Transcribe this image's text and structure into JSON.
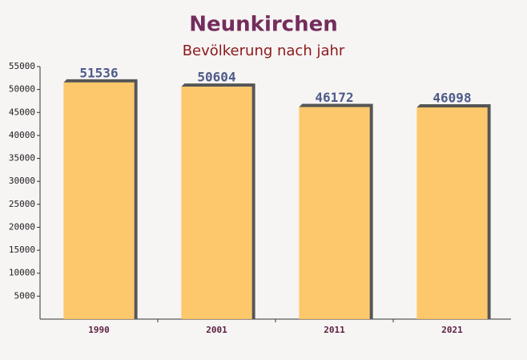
{
  "chart_data": {
    "type": "bar",
    "title": "Neunkirchen",
    "subtitle": "Bevölkerung nach jahr",
    "categories": [
      "1990",
      "2001",
      "2011",
      "2021"
    ],
    "values": [
      51536,
      50604,
      46172,
      46098
    ],
    "color": "#fdc35c",
    "ylim": [
      0,
      55000
    ],
    "yticks": [
      5000,
      10000,
      15000,
      20000,
      25000,
      30000,
      35000,
      40000,
      45000,
      50000,
      55000
    ]
  }
}
